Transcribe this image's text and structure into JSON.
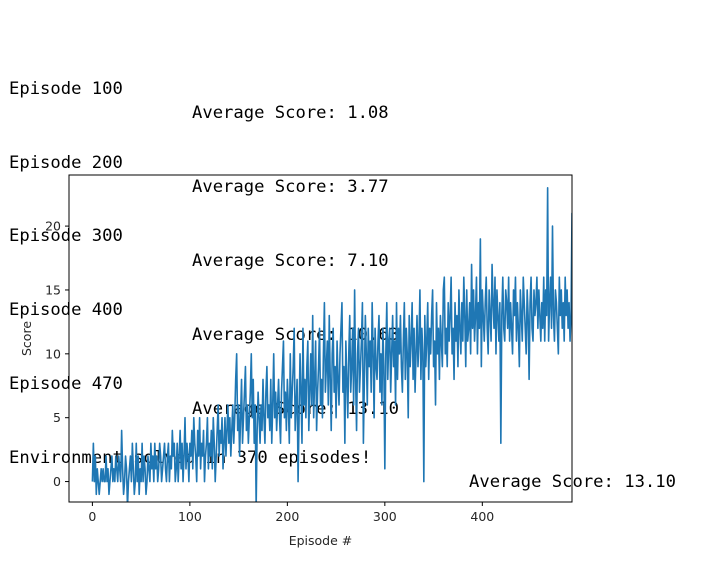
{
  "log": {
    "lines": [
      {
        "episode": "Episode 100",
        "average": "Average Score: 1.08"
      },
      {
        "episode": "Episode 200",
        "average": "Average Score: 3.77"
      },
      {
        "episode": "Episode 300",
        "average": "Average Score: 7.10"
      },
      {
        "episode": "Episode 400",
        "average": "Average Score: 10.63"
      },
      {
        "episode": "Episode 470",
        "average": "Average Score: 13.10"
      }
    ],
    "solved_message": "Environment solved in 370 episodes!",
    "solved_average": "Average Score: 13.10"
  },
  "chart_data": {
    "type": "line",
    "title": "",
    "xlabel": "Episode #",
    "ylabel": "Score",
    "xlim": [
      -24,
      492
    ],
    "ylim": [
      -1.6,
      24
    ],
    "xticks": [
      0,
      100,
      200,
      300,
      400
    ],
    "yticks": [
      0,
      5,
      10,
      15,
      20
    ],
    "grid": false,
    "line_color": "#1f77b4",
    "series": [
      {
        "values": [
          0,
          3,
          0,
          2,
          -1,
          1,
          0,
          -1,
          0,
          1,
          0,
          1,
          0,
          0,
          2,
          0,
          1,
          -1,
          0,
          1,
          2,
          0,
          1,
          0,
          2,
          1,
          0,
          2,
          1,
          0,
          4,
          1,
          -1,
          0,
          2,
          1,
          -2,
          0,
          1,
          2,
          0,
          3,
          1,
          -1,
          0,
          3,
          0,
          2,
          -1,
          1,
          0,
          3,
          0,
          2,
          1,
          -1,
          0,
          2,
          1,
          0,
          3,
          1,
          2,
          0,
          3,
          1,
          2,
          0,
          1,
          3,
          2,
          0,
          1,
          2,
          3,
          1,
          0,
          2,
          3,
          0,
          2,
          1,
          4,
          2,
          3,
          0,
          1,
          3,
          0,
          2,
          4,
          1,
          3,
          0,
          2,
          5,
          1,
          3,
          2,
          0,
          3,
          2,
          4,
          1,
          5,
          3,
          2,
          0,
          4,
          2,
          5,
          1,
          3,
          2,
          4,
          0,
          2,
          3,
          5,
          1,
          3,
          2,
          4,
          1,
          5,
          3,
          0,
          2,
          4,
          6,
          2,
          4,
          3,
          5,
          1,
          3,
          5,
          2,
          4,
          6,
          3,
          5,
          2,
          4,
          6,
          3,
          5,
          8,
          10,
          4,
          6,
          2,
          5,
          8,
          3,
          5,
          7,
          9,
          4,
          6,
          3,
          5,
          7,
          10,
          5,
          8,
          3,
          6,
          -2,
          4,
          7,
          5,
          3,
          6,
          4,
          8,
          5,
          3,
          7,
          9,
          5,
          6,
          4,
          8,
          3,
          6,
          10,
          5,
          7,
          4,
          6,
          8,
          5,
          3,
          7,
          9,
          11,
          5,
          7,
          4,
          8,
          6,
          3,
          10,
          5,
          7,
          9,
          12,
          4,
          6,
          8,
          0,
          5,
          10,
          7,
          3,
          12,
          6,
          8,
          5,
          9,
          11,
          4,
          7,
          10,
          6,
          13,
          5,
          8,
          11,
          4,
          7,
          9,
          12,
          6,
          8,
          5,
          10,
          14,
          7,
          9,
          11,
          6,
          13,
          8,
          4,
          10,
          12,
          7,
          9,
          5,
          11,
          8,
          6,
          10,
          12,
          14,
          7,
          9,
          3,
          11,
          8,
          5,
          10,
          13,
          7,
          9,
          12,
          6,
          15,
          8,
          4,
          10,
          12,
          7,
          9,
          11,
          14,
          3,
          8,
          13,
          10,
          6,
          12,
          9,
          11,
          7,
          14,
          10,
          5,
          12,
          9,
          8,
          11,
          13,
          7,
          10,
          6,
          12,
          9,
          1,
          10,
          14,
          8,
          11,
          12,
          7,
          10,
          13,
          9,
          11,
          6,
          14,
          8,
          12,
          10,
          13,
          9,
          7,
          11,
          14,
          8,
          12,
          10,
          5,
          13,
          9,
          11,
          14,
          8,
          12,
          7,
          10,
          13,
          9,
          11,
          15,
          8,
          12,
          10,
          0,
          13,
          9,
          11,
          14,
          8,
          12,
          10,
          13,
          15,
          9,
          11,
          6,
          14,
          10,
          12,
          8,
          13,
          11,
          9,
          15,
          16,
          10,
          12,
          9,
          14,
          11,
          13,
          16,
          10,
          12,
          8,
          14,
          11,
          13,
          9,
          15,
          12,
          10,
          14,
          11,
          16,
          13,
          9,
          15,
          11,
          12,
          14,
          10,
          17,
          12,
          15,
          11,
          13,
          16,
          10,
          14,
          12,
          19,
          9,
          15,
          13,
          11,
          14,
          16,
          12,
          10,
          15,
          13,
          11,
          17,
          14,
          12,
          16,
          10,
          15,
          13,
          11,
          14,
          3,
          13,
          16,
          12,
          11,
          15,
          14,
          12,
          16,
          11,
          14,
          12,
          10,
          15,
          13,
          16,
          11,
          14,
          12,
          9,
          15,
          13,
          11,
          16,
          14,
          12,
          10,
          15,
          13,
          8,
          14,
          16,
          12,
          11,
          15,
          13,
          14,
          16,
          12,
          15,
          13,
          11,
          14,
          12,
          16,
          11,
          15,
          13,
          23,
          11,
          14,
          16,
          12,
          20,
          13,
          11,
          15,
          14,
          12,
          10,
          16,
          13,
          15,
          12,
          14,
          11,
          16,
          13,
          15,
          12,
          14,
          11,
          13,
          21,
          15,
          12,
          14,
          13,
          16,
          11,
          15,
          13,
          12,
          14,
          8,
          13,
          21,
          20,
          14
        ]
      }
    ]
  }
}
